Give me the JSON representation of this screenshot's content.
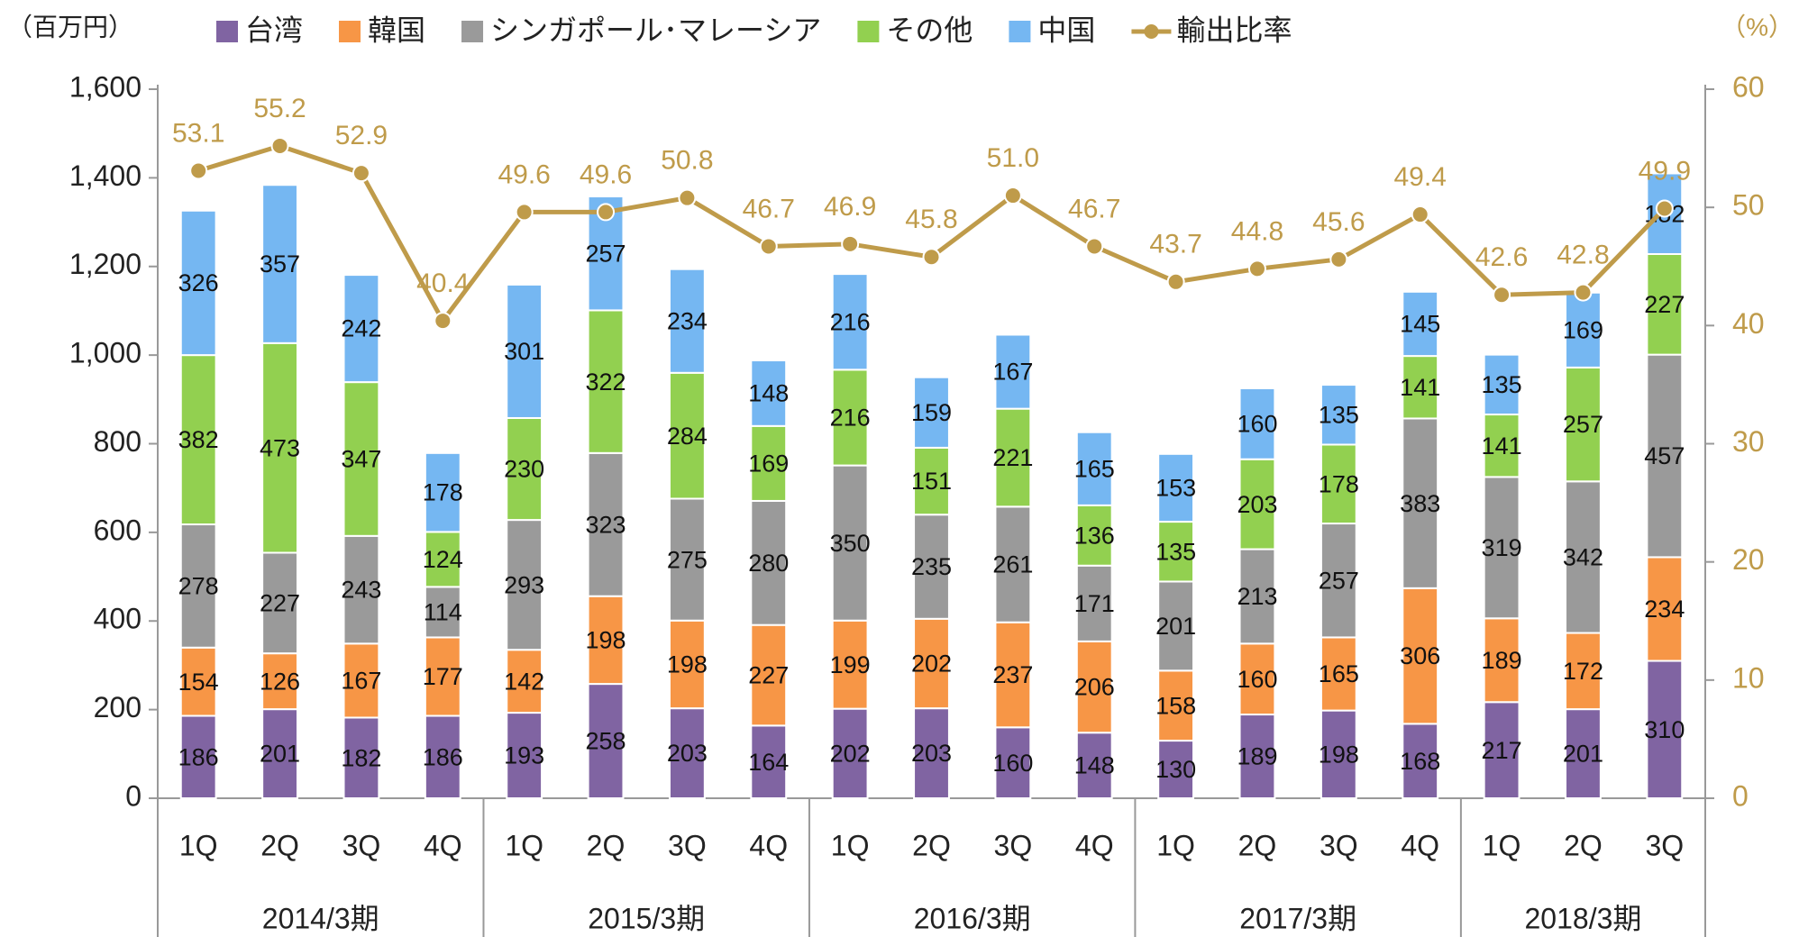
{
  "chart_data": {
    "type": "bar",
    "stacked": true,
    "y_axis_label": "（百万円）",
    "y2_axis_label": "（%）",
    "groups": [
      {
        "label": "2014/3期",
        "categories": [
          "1Q",
          "2Q",
          "3Q",
          "4Q"
        ]
      },
      {
        "label": "2015/3期",
        "categories": [
          "1Q",
          "2Q",
          "3Q",
          "4Q"
        ]
      },
      {
        "label": "2016/3期",
        "categories": [
          "1Q",
          "2Q",
          "3Q",
          "4Q"
        ]
      },
      {
        "label": "2017/3期",
        "categories": [
          "1Q",
          "2Q",
          "3Q",
          "4Q"
        ]
      },
      {
        "label": "2018/3期",
        "categories": [
          "1Q",
          "2Q",
          "3Q"
        ]
      }
    ],
    "ylim": [
      0,
      1600
    ],
    "yticks": [
      0,
      200,
      400,
      600,
      800,
      {
        "value": 1000,
        "label": "1,000"
      },
      {
        "value": 1200,
        "label": "1,200"
      },
      {
        "value": 1400,
        "label": "1,400"
      },
      {
        "value": 1600,
        "label": "1,600"
      }
    ],
    "y2lim": [
      0,
      60
    ],
    "y2ticks": [
      0,
      10,
      20,
      30,
      40,
      50,
      60
    ],
    "series": [
      {
        "name": "台湾",
        "color": "#8064a2",
        "values": [
          186,
          201,
          182,
          186,
          193,
          258,
          203,
          164,
          202,
          203,
          160,
          148,
          130,
          189,
          198,
          168,
          217,
          201,
          310
        ]
      },
      {
        "name": "韓国",
        "color": "#f79646",
        "values": [
          154,
          126,
          167,
          177,
          142,
          198,
          198,
          227,
          199,
          202,
          237,
          206,
          158,
          160,
          165,
          306,
          189,
          172,
          234
        ]
      },
      {
        "name": "シンガポール･マレーシア",
        "color": "#9a9a9a",
        "values": [
          278,
          227,
          243,
          114,
          293,
          323,
          275,
          280,
          350,
          235,
          261,
          171,
          201,
          213,
          257,
          383,
          319,
          342,
          457
        ]
      },
      {
        "name": "その他",
        "color": "#92d050",
        "values": [
          382,
          473,
          347,
          124,
          230,
          322,
          284,
          169,
          216,
          151,
          221,
          136,
          135,
          203,
          178,
          141,
          141,
          257,
          227
        ]
      },
      {
        "name": "中国",
        "color": "#75b7f2",
        "values": [
          326,
          357,
          242,
          178,
          301,
          257,
          234,
          148,
          216,
          159,
          167,
          165,
          153,
          160,
          135,
          145,
          135,
          169,
          182
        ]
      },
      {
        "name": "輸出比率",
        "type": "line",
        "axis": "y2",
        "color": "#bf9b4a",
        "values": [
          53.1,
          55.2,
          52.9,
          40.4,
          49.6,
          49.6,
          50.8,
          46.7,
          46.9,
          45.8,
          51.0,
          46.7,
          43.7,
          44.8,
          45.6,
          49.4,
          42.6,
          42.8,
          49.9
        ],
        "value_labels": [
          "53.1",
          "55.2",
          "52.9",
          "40.4",
          "49.6",
          "49.6",
          "50.8",
          "46.7",
          "46.9",
          "45.8",
          "51.0",
          "46.7",
          "43.7",
          "44.8",
          "45.6",
          "49.4",
          "42.6",
          "42.8",
          "49.9"
        ]
      }
    ]
  }
}
